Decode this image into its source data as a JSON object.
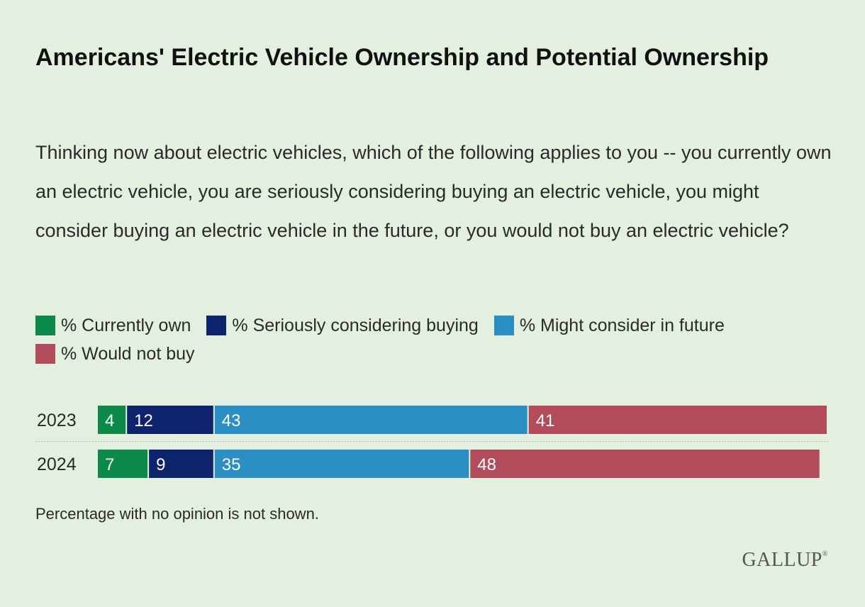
{
  "title": "Americans' Electric Vehicle Ownership and Potential Ownership",
  "subtitle": "Thinking now about electric vehicles, which of the following applies to you -- you currently own an electric vehicle, you are seriously considering buying an electric vehicle, you might consider buying an electric vehicle in the future, or you would not buy an electric vehicle?",
  "footnote": "Percentage with no opinion is not shown.",
  "logo": "GALLUP",
  "colors": {
    "currently_own": "#0b8a4a",
    "seriously_considering": "#0d236b",
    "might_consider": "#2b8fc4",
    "would_not_buy": "#b24c5a"
  },
  "chart_data": {
    "type": "bar",
    "orientation": "horizontal",
    "stacked": true,
    "categories": [
      "2023",
      "2024"
    ],
    "series": [
      {
        "name": "% Currently own",
        "values": [
          4,
          7
        ],
        "color": "#0b8a4a"
      },
      {
        "name": "% Seriously considering buying",
        "values": [
          12,
          9
        ],
        "color": "#0d236b"
      },
      {
        "name": "% Might consider in future",
        "values": [
          43,
          35
        ],
        "color": "#2b8fc4"
      },
      {
        "name": "% Would not buy",
        "values": [
          41,
          48
        ],
        "color": "#b24c5a"
      }
    ],
    "xlim": [
      0,
      100
    ]
  }
}
